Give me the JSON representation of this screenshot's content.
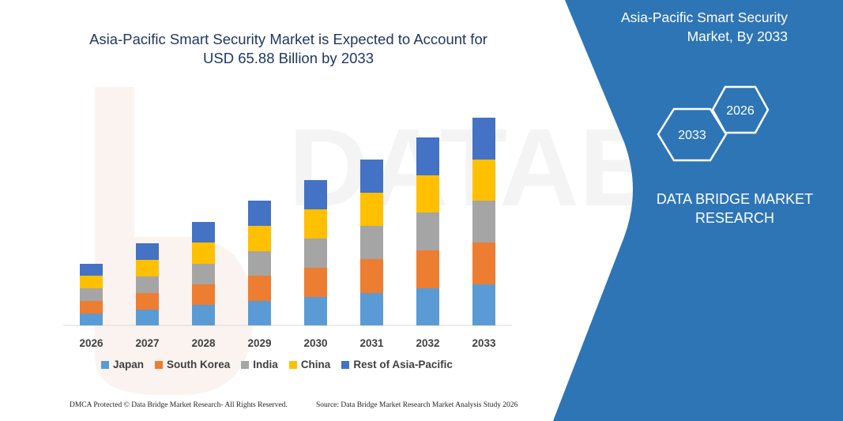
{
  "chart_data": {
    "type": "bar",
    "stacked": true,
    "title_line1": "Asia-Pacific Smart Security Market is Expected to Account for",
    "title_line2": "USD 65.88 Billion by 2033",
    "categories": [
      "2026",
      "2027",
      "2028",
      "2029",
      "2030",
      "2031",
      "2032",
      "2033"
    ],
    "series": [
      {
        "name": "Japan",
        "color": "#5b9bd5",
        "values": [
          15,
          20,
          26,
          31,
          36,
          41,
          47,
          52
        ]
      },
      {
        "name": "South Korea",
        "color": "#ed7d31",
        "values": [
          16,
          21,
          26,
          32,
          37,
          43,
          48,
          53
        ]
      },
      {
        "name": "India",
        "color": "#a5a5a5",
        "values": [
          16,
          21,
          26,
          31,
          37,
          42,
          48,
          53
        ]
      },
      {
        "name": "China",
        "color": "#ffc000",
        "values": [
          16,
          21,
          27,
          32,
          37,
          42,
          47,
          52
        ]
      },
      {
        "name": "Rest of Asia-Pacific",
        "color": "#4472c4",
        "values": [
          15,
          21,
          26,
          32,
          37,
          42,
          48,
          53
        ]
      }
    ],
    "legend_position": "bottom",
    "grid": false,
    "ylim": [
      0,
      300
    ]
  },
  "side_panel": {
    "title_line1": "Asia-Pacific Smart Security",
    "title_line2": "Market, By 2033",
    "hex_front": "2033",
    "hex_back": "2026",
    "brand_line1": "DATA BRIDGE MARKET",
    "brand_line2": "RESEARCH",
    "panel_color": "#2e75b6"
  },
  "footer": {
    "left": "DMCA Protected © Data Bridge Market Research-  All Rights Reserved.",
    "right": "Source: Data Bridge Market Research  Market Analysis Study 2026"
  }
}
